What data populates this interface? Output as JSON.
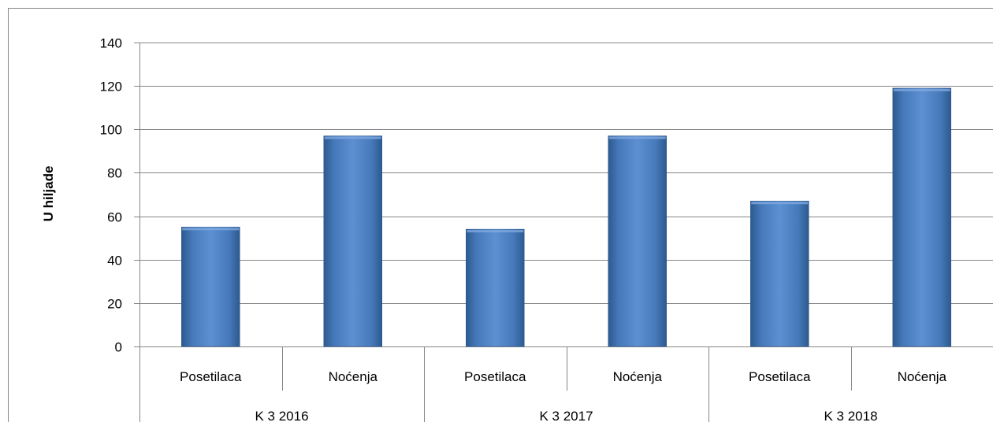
{
  "chart_data": {
    "type": "bar",
    "ylabel": "U hiljade",
    "ylim": [
      0,
      140
    ],
    "yticks": [
      0,
      20,
      40,
      60,
      80,
      100,
      120,
      140
    ],
    "grid": true,
    "categories": [
      {
        "group": "K 3 2016",
        "label": "Posetilaca",
        "value": 55
      },
      {
        "group": "K 3 2016",
        "label": "Noćenja",
        "value": 97
      },
      {
        "group": "K 3 2017",
        "label": "Posetilaca",
        "value": 54
      },
      {
        "group": "K 3 2017",
        "label": "Noćenja",
        "value": 97
      },
      {
        "group": "K 3 2018",
        "label": "Posetilaca",
        "value": 67
      },
      {
        "group": "K 3 2018",
        "label": "Noćenja",
        "value": 119
      }
    ],
    "groups": [
      "K 3 2016",
      "K 3 2017",
      "K 3 2018"
    ],
    "colors": {
      "bar": "#4F81BD",
      "bar_dark": "#2E5F95",
      "grid": "#868686"
    }
  }
}
